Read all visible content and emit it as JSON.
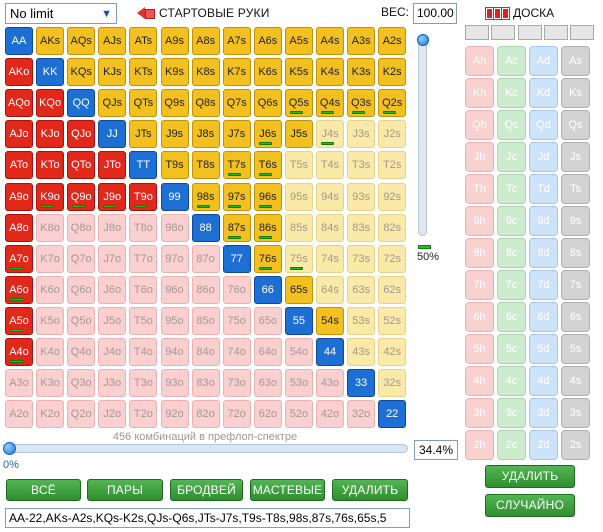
{
  "top": {
    "limit_select": "No limit",
    "hands_title": "СТАРТОВЫЕ РУКИ",
    "weight_label": "ВЕС:",
    "weight_value": "100.00",
    "board_title": "ДОСКА"
  },
  "grid": {
    "ranks": [
      "A",
      "K",
      "Q",
      "J",
      "T",
      "9",
      "8",
      "7",
      "6",
      "5",
      "4",
      "3",
      "2"
    ],
    "selected_offsuit": [
      "AKo",
      "AQo",
      "KQo",
      "AJo",
      "KJo",
      "QJo",
      "ATo",
      "KTo",
      "QTo",
      "JTo",
      "A9o",
      "K9o",
      "Q9o",
      "J9o",
      "T9o",
      "A8o",
      "A7o",
      "A6o",
      "A5o",
      "A4o"
    ],
    "weight_bars": [
      "Q5s",
      "Q4s",
      "Q3s",
      "Q2s",
      "J6s",
      "J4s",
      "T7s",
      "T6s",
      "K9o",
      "Q9o",
      "J9o",
      "T9o",
      "98s",
      "97s",
      "96s",
      "87s",
      "86s",
      "76s",
      "75s",
      "A7o",
      "A6o",
      "A5o",
      "A4o"
    ]
  },
  "side": {
    "weight_percent": "50%"
  },
  "bottom": {
    "combo_label": "456 комбинаций в префлоп-спектре",
    "combo_percent": "34.4%",
    "zero_label": "0%",
    "buttons": [
      "ВСЁ",
      "ПАРЫ",
      "БРОДВЕЙ",
      "МАСТЕВЫЕ",
      "УДАЛИТЬ"
    ],
    "range_text": "AA-22,AKs-A2s,KQs-K2s,QJs-Q6s,JTs-J7s,T9s-T8s,98s,87s,76s,65s,5"
  },
  "board": {
    "clear_button": "УДАЛИТЬ",
    "random_button": "СЛУЧАЙНО",
    "suits": [
      "h",
      "c",
      "d",
      "s"
    ]
  }
}
